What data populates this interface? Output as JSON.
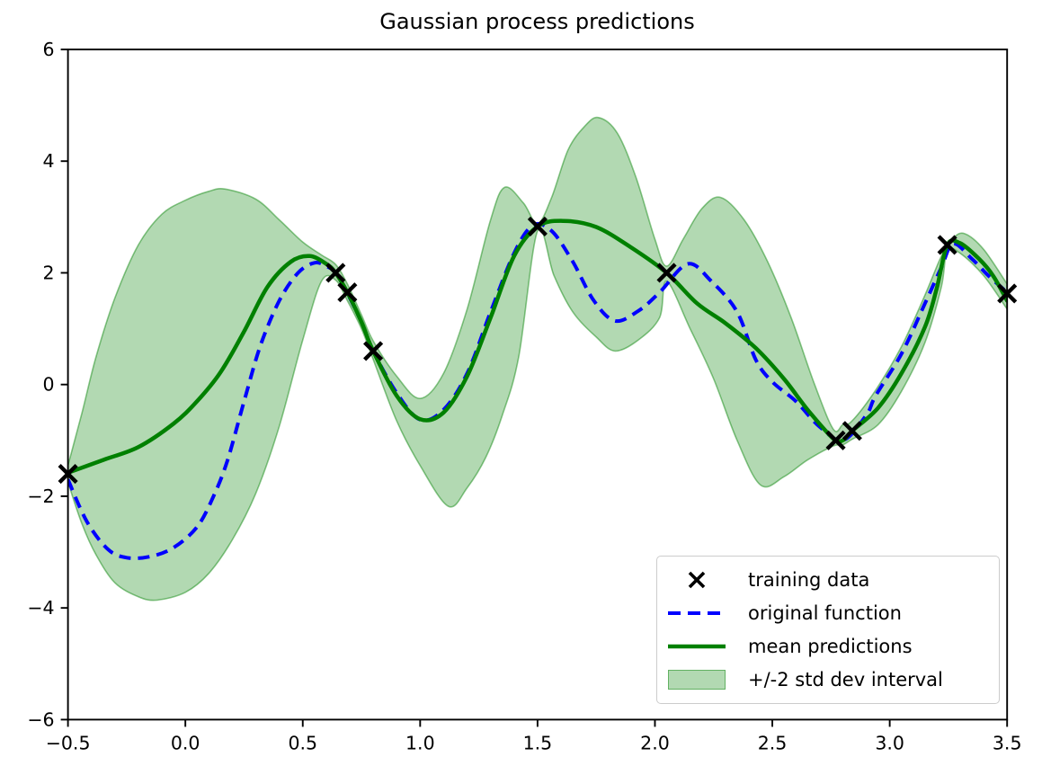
{
  "chart_data": {
    "type": "line",
    "title": "Gaussian process predictions",
    "xlabel": "",
    "ylabel": "",
    "xlim": [
      -0.5,
      3.5
    ],
    "ylim": [
      -6,
      6
    ],
    "grid": false,
    "legend_position": "lower right",
    "x_ticks": [
      {
        "v": -0.5,
        "label": "−0.5"
      },
      {
        "v": 0.0,
        "label": "0.0"
      },
      {
        "v": 0.5,
        "label": "0.5"
      },
      {
        "v": 1.0,
        "label": "1.0"
      },
      {
        "v": 1.5,
        "label": "1.5"
      },
      {
        "v": 2.0,
        "label": "2.0"
      },
      {
        "v": 2.5,
        "label": "2.5"
      },
      {
        "v": 3.0,
        "label": "3.0"
      },
      {
        "v": 3.5,
        "label": "3.5"
      }
    ],
    "y_ticks": [
      {
        "v": -6,
        "label": "−6"
      },
      {
        "v": -4,
        "label": "−4"
      },
      {
        "v": -2,
        "label": "−2"
      },
      {
        "v": 0,
        "label": "0"
      },
      {
        "v": 2,
        "label": "2"
      },
      {
        "v": 4,
        "label": "4"
      },
      {
        "v": 6,
        "label": "6"
      }
    ],
    "colors": {
      "training": "#000000",
      "original": "#0000ff",
      "mean": "#008000",
      "band_fill": "#008000",
      "band_opacity": 0.3
    },
    "series": [
      {
        "name": "training data",
        "type": "scatter",
        "marker": "x",
        "color": "#000000",
        "points": [
          [
            -0.5,
            -1.6
          ],
          [
            0.64,
            2.0
          ],
          [
            0.69,
            1.65
          ],
          [
            0.8,
            0.6
          ],
          [
            1.5,
            2.83
          ],
          [
            2.05,
            2.0
          ],
          [
            2.77,
            -1.0
          ],
          [
            2.84,
            -0.83
          ],
          [
            3.245,
            2.5
          ],
          [
            3.5,
            1.63
          ]
        ]
      },
      {
        "name": "original function",
        "type": "line",
        "style": "dashed",
        "color": "#0000ff",
        "points": [
          [
            -0.5,
            -1.7
          ],
          [
            -0.42,
            -2.45
          ],
          [
            -0.33,
            -2.95
          ],
          [
            -0.25,
            -3.1
          ],
          [
            -0.15,
            -3.08
          ],
          [
            -0.05,
            -2.92
          ],
          [
            0.05,
            -2.55
          ],
          [
            0.12,
            -2.0
          ],
          [
            0.18,
            -1.35
          ],
          [
            0.25,
            -0.3
          ],
          [
            0.32,
            0.7
          ],
          [
            0.4,
            1.5
          ],
          [
            0.48,
            2.0
          ],
          [
            0.55,
            2.18
          ],
          [
            0.6,
            2.12
          ],
          [
            0.64,
            2.0
          ],
          [
            0.69,
            1.63
          ],
          [
            0.75,
            1.12
          ],
          [
            0.8,
            0.6
          ],
          [
            0.9,
            -0.15
          ],
          [
            1.0,
            -0.63
          ],
          [
            1.1,
            -0.45
          ],
          [
            1.2,
            0.2
          ],
          [
            1.3,
            1.3
          ],
          [
            1.4,
            2.35
          ],
          [
            1.48,
            2.85
          ],
          [
            1.56,
            2.75
          ],
          [
            1.65,
            2.2
          ],
          [
            1.74,
            1.5
          ],
          [
            1.83,
            1.14
          ],
          [
            1.93,
            1.32
          ],
          [
            2.02,
            1.65
          ],
          [
            2.14,
            2.16
          ],
          [
            2.24,
            1.85
          ],
          [
            2.35,
            1.3
          ],
          [
            2.43,
            0.44
          ],
          [
            2.5,
            0.05
          ],
          [
            2.6,
            -0.3
          ],
          [
            2.7,
            -0.75
          ],
          [
            2.8,
            -1.0
          ],
          [
            2.9,
            -0.55
          ],
          [
            2.94,
            -0.2
          ],
          [
            3.05,
            0.55
          ],
          [
            3.15,
            1.45
          ],
          [
            3.22,
            2.1
          ],
          [
            3.27,
            2.52
          ],
          [
            3.35,
            2.25
          ],
          [
            3.42,
            1.95
          ],
          [
            3.5,
            1.65
          ]
        ]
      },
      {
        "name": "mean predictions",
        "type": "line",
        "style": "solid",
        "color": "#008000",
        "points": [
          [
            -0.5,
            -1.58
          ],
          [
            -0.35,
            -1.35
          ],
          [
            -0.2,
            -1.12
          ],
          [
            -0.05,
            -0.7
          ],
          [
            0.05,
            -0.3
          ],
          [
            0.15,
            0.22
          ],
          [
            0.25,
            0.95
          ],
          [
            0.35,
            1.75
          ],
          [
            0.45,
            2.2
          ],
          [
            0.53,
            2.3
          ],
          [
            0.6,
            2.16
          ],
          [
            0.64,
            2.0
          ],
          [
            0.69,
            1.65
          ],
          [
            0.75,
            1.12
          ],
          [
            0.8,
            0.6
          ],
          [
            0.9,
            -0.2
          ],
          [
            1.0,
            -0.62
          ],
          [
            1.1,
            -0.5
          ],
          [
            1.2,
            0.15
          ],
          [
            1.3,
            1.2
          ],
          [
            1.4,
            2.3
          ],
          [
            1.5,
            2.83
          ],
          [
            1.61,
            2.93
          ],
          [
            1.75,
            2.82
          ],
          [
            1.9,
            2.45
          ],
          [
            2.05,
            2.0
          ],
          [
            2.18,
            1.45
          ],
          [
            2.3,
            1.1
          ],
          [
            2.43,
            0.65
          ],
          [
            2.55,
            0.1
          ],
          [
            2.65,
            -0.45
          ],
          [
            2.76,
            -0.97
          ],
          [
            2.8,
            -1.0
          ],
          [
            2.84,
            -0.83
          ],
          [
            2.95,
            -0.42
          ],
          [
            3.05,
            0.2
          ],
          [
            3.15,
            1.03
          ],
          [
            3.2,
            1.72
          ],
          [
            3.245,
            2.5
          ],
          [
            3.3,
            2.53
          ],
          [
            3.38,
            2.25
          ],
          [
            3.44,
            1.95
          ],
          [
            3.5,
            1.5
          ]
        ]
      },
      {
        "name": "+/-2 std dev interval",
        "type": "band",
        "color": "#008000",
        "opacity": 0.3,
        "upper": [
          [
            -0.5,
            -1.45
          ],
          [
            -0.44,
            -0.5
          ],
          [
            -0.38,
            0.5
          ],
          [
            -0.3,
            1.55
          ],
          [
            -0.2,
            2.5
          ],
          [
            -0.1,
            3.05
          ],
          [
            0.0,
            3.3
          ],
          [
            0.1,
            3.46
          ],
          [
            0.17,
            3.5
          ],
          [
            0.3,
            3.32
          ],
          [
            0.4,
            2.95
          ],
          [
            0.5,
            2.55
          ],
          [
            0.58,
            2.32
          ],
          [
            0.64,
            2.15
          ],
          [
            0.69,
            1.8
          ],
          [
            0.75,
            1.25
          ],
          [
            0.8,
            0.78
          ],
          [
            0.9,
            0.15
          ],
          [
            1.0,
            -0.25
          ],
          [
            1.1,
            0.2
          ],
          [
            1.2,
            1.35
          ],
          [
            1.3,
            2.95
          ],
          [
            1.36,
            3.53
          ],
          [
            1.44,
            3.25
          ],
          [
            1.5,
            2.88
          ],
          [
            1.56,
            3.35
          ],
          [
            1.63,
            4.2
          ],
          [
            1.7,
            4.62
          ],
          [
            1.76,
            4.78
          ],
          [
            1.84,
            4.5
          ],
          [
            1.92,
            3.7
          ],
          [
            2.0,
            2.6
          ],
          [
            2.05,
            2.12
          ],
          [
            2.12,
            2.6
          ],
          [
            2.2,
            3.15
          ],
          [
            2.28,
            3.35
          ],
          [
            2.38,
            2.95
          ],
          [
            2.48,
            2.2
          ],
          [
            2.58,
            1.2
          ],
          [
            2.68,
            0.0
          ],
          [
            2.76,
            -0.8
          ],
          [
            2.8,
            -0.72
          ],
          [
            2.84,
            -0.65
          ],
          [
            2.94,
            -0.1
          ],
          [
            3.05,
            0.68
          ],
          [
            3.15,
            1.6
          ],
          [
            3.22,
            2.3
          ],
          [
            3.27,
            2.62
          ],
          [
            3.32,
            2.7
          ],
          [
            3.4,
            2.42
          ],
          [
            3.5,
            1.8
          ]
        ],
        "lower": [
          [
            -0.5,
            -1.75
          ],
          [
            -0.44,
            -2.5
          ],
          [
            -0.38,
            -3.05
          ],
          [
            -0.3,
            -3.55
          ],
          [
            -0.2,
            -3.8
          ],
          [
            -0.12,
            -3.86
          ],
          [
            0.0,
            -3.72
          ],
          [
            0.1,
            -3.38
          ],
          [
            0.2,
            -2.78
          ],
          [
            0.3,
            -1.95
          ],
          [
            0.4,
            -0.75
          ],
          [
            0.5,
            0.8
          ],
          [
            0.58,
            1.85
          ],
          [
            0.64,
            1.87
          ],
          [
            0.69,
            1.5
          ],
          [
            0.75,
            1.0
          ],
          [
            0.8,
            0.45
          ],
          [
            0.9,
            -0.65
          ],
          [
            1.0,
            -1.45
          ],
          [
            1.12,
            -2.18
          ],
          [
            1.2,
            -1.85
          ],
          [
            1.28,
            -1.3
          ],
          [
            1.35,
            -0.55
          ],
          [
            1.42,
            0.5
          ],
          [
            1.5,
            2.75
          ],
          [
            1.57,
            1.95
          ],
          [
            1.65,
            1.3
          ],
          [
            1.75,
            0.85
          ],
          [
            1.83,
            0.6
          ],
          [
            1.93,
            0.8
          ],
          [
            2.02,
            1.2
          ],
          [
            2.05,
            1.85
          ],
          [
            2.15,
            1.0
          ],
          [
            2.25,
            0.1
          ],
          [
            2.35,
            -1.0
          ],
          [
            2.45,
            -1.8
          ],
          [
            2.55,
            -1.65
          ],
          [
            2.65,
            -1.35
          ],
          [
            2.76,
            -1.1
          ],
          [
            2.8,
            -1.08
          ],
          [
            2.84,
            -0.98
          ],
          [
            2.95,
            -0.72
          ],
          [
            3.05,
            -0.12
          ],
          [
            3.15,
            0.75
          ],
          [
            3.22,
            1.75
          ],
          [
            3.245,
            2.4
          ],
          [
            3.3,
            2.35
          ],
          [
            3.4,
            1.95
          ],
          [
            3.5,
            1.35
          ]
        ]
      }
    ]
  }
}
